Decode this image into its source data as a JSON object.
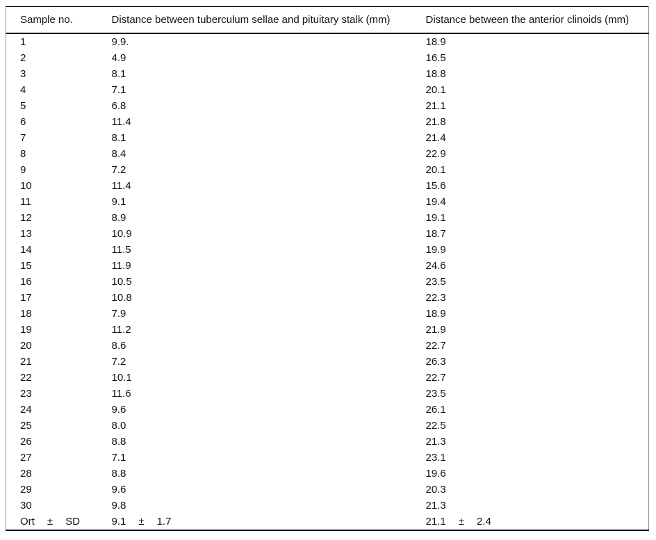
{
  "table": {
    "headers": [
      "Sample no.",
      "Distance between tuberculum sellae and pituitary stalk (mm)",
      "Distance between the anterior clinoids (mm)"
    ],
    "rows": [
      {
        "no": "1",
        "stalk": "9.9.",
        "clinoids": "18.9"
      },
      {
        "no": "2",
        "stalk": "4.9",
        "clinoids": "16.5"
      },
      {
        "no": "3",
        "stalk": "8.1",
        "clinoids": "18.8"
      },
      {
        "no": "4",
        "stalk": "7.1",
        "clinoids": "20.1"
      },
      {
        "no": "5",
        "stalk": "6.8",
        "clinoids": "21.1"
      },
      {
        "no": "6",
        "stalk": "11.4",
        "clinoids": "21.8"
      },
      {
        "no": "7",
        "stalk": "8.1",
        "clinoids": "21.4"
      },
      {
        "no": "8",
        "stalk": "8.4",
        "clinoids": "22.9"
      },
      {
        "no": "9",
        "stalk": "7.2",
        "clinoids": "20.1"
      },
      {
        "no": "10",
        "stalk": "11.4",
        "clinoids": "15.6"
      },
      {
        "no": "11",
        "stalk": "9.1",
        "clinoids": "19.4"
      },
      {
        "no": "12",
        "stalk": "8.9",
        "clinoids": "19.1"
      },
      {
        "no": "13",
        "stalk": "10.9",
        "clinoids": "18.7"
      },
      {
        "no": "14",
        "stalk": "11.5",
        "clinoids": "19.9"
      },
      {
        "no": "15",
        "stalk": "11.9",
        "clinoids": "24.6"
      },
      {
        "no": "16",
        "stalk": "10.5",
        "clinoids": "23.5"
      },
      {
        "no": "17",
        "stalk": "10.8",
        "clinoids": "22.3"
      },
      {
        "no": "18",
        "stalk": "7.9",
        "clinoids": "18.9"
      },
      {
        "no": "19",
        "stalk": "11.2",
        "clinoids": "21.9"
      },
      {
        "no": "20",
        "stalk": "8.6",
        "clinoids": "22.7"
      },
      {
        "no": "21",
        "stalk": "7.2",
        "clinoids": "26.3"
      },
      {
        "no": "22",
        "stalk": "10.1",
        "clinoids": "22.7"
      },
      {
        "no": "23",
        "stalk": "11.6",
        "clinoids": "23.5"
      },
      {
        "no": "24",
        "stalk": "9.6",
        "clinoids": "26.1"
      },
      {
        "no": "25",
        "stalk": "8.0",
        "clinoids": "22.5"
      },
      {
        "no": "26",
        "stalk": "8.8",
        "clinoids": "21.3"
      },
      {
        "no": "27",
        "stalk": "7.1",
        "clinoids": "23.1"
      },
      {
        "no": "28",
        "stalk": "8.8",
        "clinoids": "19.6"
      },
      {
        "no": "29",
        "stalk": "9.6",
        "clinoids": "20.3"
      },
      {
        "no": "30",
        "stalk": "9.8",
        "clinoids": "21.3"
      }
    ],
    "summary": {
      "label": [
        "Ort",
        "±",
        "SD"
      ],
      "stalk": [
        "9.1",
        "±",
        "1.7"
      ],
      "clinoids": [
        "21.1",
        "±",
        "2.4"
      ]
    }
  },
  "colors": {
    "text": "#111111",
    "rule": "#000000",
    "side_rule": "#909090",
    "background": "#ffffff"
  }
}
